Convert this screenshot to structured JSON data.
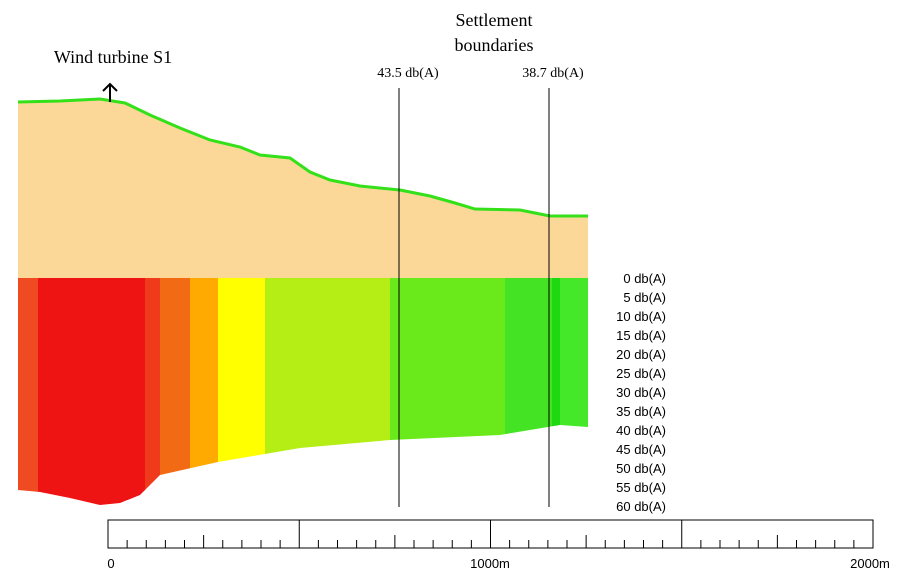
{
  "turbine": {
    "label": "Wind turbine S1"
  },
  "settlement": {
    "title_lines": [
      "Settlement",
      "boundaries"
    ],
    "markers": [
      {
        "label": "43.5 db(A)"
      },
      {
        "label": "38.7 db(A)"
      }
    ]
  },
  "legend": {
    "labels": [
      "0 db(A)",
      "5 db(A)",
      "10 db(A)",
      "15 db(A)",
      "20 db(A)",
      "25 db(A)",
      "30 db(A)",
      "35 db(A)",
      "40 db(A)",
      "45 db(A)",
      "50 db(A)",
      "55 db(A)",
      "60 db(A)"
    ]
  },
  "scale": {
    "labels": [
      "0",
      "1000m",
      "2000m"
    ]
  }
}
